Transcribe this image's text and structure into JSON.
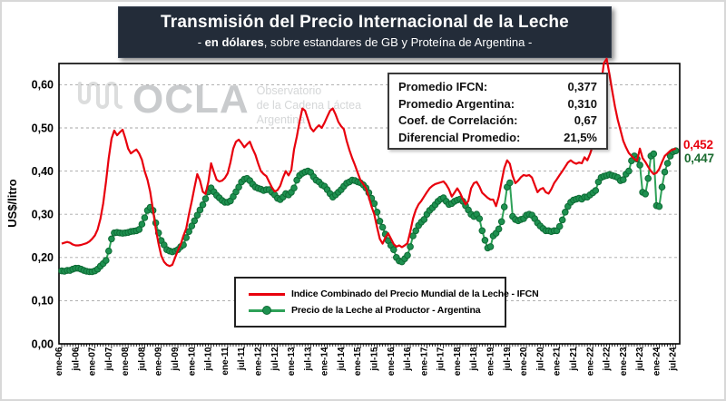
{
  "title": {
    "line1": "Transmisión del Precio Internacional de la Leche",
    "subtitle_prefix": "- ",
    "subtitle_bold": "en dólares",
    "subtitle_rest": ", sobre estandares de GB y Proteína de Argentina -"
  },
  "watermark": {
    "acronym": "OCLA",
    "line1": "Observatorio",
    "line2": "de la Cadena Láctea",
    "line3": "Argentina"
  },
  "stats_box": {
    "rows": [
      {
        "label": "Promedio IFCN:",
        "value": "0,377"
      },
      {
        "label": "Promedio Argentina:",
        "value": "0,310"
      },
      {
        "label": "Coef. de Correlación:",
        "value": "0,67"
      },
      {
        "label": "Diferencial Promedio:",
        "value": "21,5%"
      }
    ]
  },
  "legend": {
    "items": [
      {
        "label": "Indice Combinado del Precio Mundial de la Leche - IFCN",
        "color": "#e8000d",
        "marker": false
      },
      {
        "label": "Precio de la Leche al Productor - Argentina",
        "color": "#2ea158",
        "marker": true
      }
    ]
  },
  "end_labels": {
    "ifcn": "0,452",
    "argentina": "0,447"
  },
  "colors": {
    "title_bg": "#232c39",
    "ifcn_red": "#e8000d",
    "argentina_green": "#2ea158",
    "argentina_marker": "#1e9150",
    "argentina_marker_edge": "#0e6b35",
    "end_label_green": "#1a6b2f",
    "gridline": "#a6a6a6",
    "watermark_gray": "#c9cbcd"
  },
  "y_axis": {
    "label": "US$/litro",
    "ticks": [
      "0,00",
      "0,10",
      "0,20",
      "0,30",
      "0,40",
      "0,50",
      "0,60"
    ]
  },
  "chart_data": {
    "type": "line",
    "x_start": "ene-06",
    "x_end": "jul-24",
    "months_per_point": 1,
    "grid": "horizontal-dashed",
    "ylim": [
      0,
      0.6
    ],
    "x_tick_labels": [
      "ene-06",
      "jul-06",
      "ene-07",
      "jul-07",
      "ene-08",
      "jul-08",
      "ene-09",
      "jul-09",
      "ene-10",
      "jul-10",
      "ene-11",
      "jul-11",
      "ene-12",
      "jul-12",
      "ene-13",
      "jul-13",
      "ene-14",
      "jul-14",
      "ene-15",
      "jul-15",
      "ene-16",
      "jul-16",
      "ene-17",
      "jul-17",
      "ene-18",
      "jul-18",
      "ene-19",
      "jul-19",
      "ene-20",
      "jul-20",
      "ene-21",
      "jul-21",
      "ene-22",
      "jul-22",
      "ene-23",
      "jul-23",
      "ene-24",
      "jul-24"
    ],
    "series": [
      {
        "name": "Indice Combinado del Precio Mundial de la Leche - IFCN",
        "color": "#e8000d",
        "marker": false,
        "values": [
          0.232,
          0.234,
          0.236,
          0.234,
          0.23,
          0.228,
          0.228,
          0.229,
          0.231,
          0.233,
          0.237,
          0.243,
          0.251,
          0.265,
          0.29,
          0.325,
          0.375,
          0.43,
          0.475,
          0.494,
          0.483,
          0.49,
          0.496,
          0.476,
          0.452,
          0.441,
          0.446,
          0.45,
          0.441,
          0.426,
          0.4,
          0.38,
          0.352,
          0.31,
          0.267,
          0.232,
          0.204,
          0.19,
          0.183,
          0.18,
          0.183,
          0.2,
          0.216,
          0.23,
          0.25,
          0.267,
          0.3,
          0.33,
          0.362,
          0.393,
          0.378,
          0.352,
          0.347,
          0.375,
          0.418,
          0.398,
          0.38,
          0.376,
          0.378,
          0.384,
          0.395,
          0.42,
          0.452,
          0.468,
          0.473,
          0.465,
          0.455,
          0.462,
          0.468,
          0.452,
          0.438,
          0.418,
          0.4,
          0.393,
          0.388,
          0.375,
          0.362,
          0.353,
          0.356,
          0.366,
          0.385,
          0.4,
          0.39,
          0.402,
          0.45,
          0.48,
          0.515,
          0.545,
          0.54,
          0.52,
          0.5,
          0.492,
          0.5,
          0.506,
          0.5,
          0.512,
          0.526,
          0.54,
          0.545,
          0.531,
          0.514,
          0.504,
          0.497,
          0.47,
          0.449,
          0.43,
          0.414,
          0.396,
          0.379,
          0.37,
          0.36,
          0.34,
          0.318,
          0.3,
          0.27,
          0.243,
          0.232,
          0.246,
          0.256,
          0.244,
          0.231,
          0.225,
          0.228,
          0.224,
          0.228,
          0.233,
          0.26,
          0.29,
          0.31,
          0.323,
          0.331,
          0.341,
          0.351,
          0.36,
          0.366,
          0.37,
          0.372,
          0.374,
          0.376,
          0.369,
          0.358,
          0.341,
          0.35,
          0.36,
          0.35,
          0.335,
          0.323,
          0.331,
          0.36,
          0.372,
          0.375,
          0.364,
          0.35,
          0.344,
          0.338,
          0.334,
          0.334,
          0.319,
          0.341,
          0.376,
          0.407,
          0.425,
          0.417,
          0.389,
          0.372,
          0.378,
          0.386,
          0.391,
          0.389,
          0.391,
          0.385,
          0.368,
          0.351,
          0.358,
          0.361,
          0.351,
          0.348,
          0.358,
          0.372,
          0.381,
          0.391,
          0.4,
          0.41,
          0.42,
          0.425,
          0.42,
          0.417,
          0.42,
          0.418,
          0.432,
          0.425,
          0.44,
          0.46,
          0.487,
          0.53,
          0.6,
          0.65,
          0.66,
          0.625,
          0.586,
          0.55,
          0.519,
          0.495,
          0.47,
          0.455,
          0.442,
          0.435,
          0.428,
          0.424,
          0.452,
          0.43,
          0.421,
          0.41,
          0.4,
          0.393,
          0.396,
          0.405,
          0.421,
          0.435,
          0.441,
          0.447,
          0.45,
          0.452
        ]
      },
      {
        "name": "Precio de la Leche al Productor - Argentina",
        "color": "#2ea158",
        "marker": true,
        "marker_fill": "#1e9150",
        "marker_edge": "#0e6b35",
        "values": [
          0.169,
          0.168,
          0.17,
          0.17,
          0.173,
          0.175,
          0.175,
          0.173,
          0.17,
          0.168,
          0.167,
          0.167,
          0.169,
          0.173,
          0.18,
          0.186,
          0.193,
          0.215,
          0.243,
          0.257,
          0.258,
          0.257,
          0.256,
          0.257,
          0.258,
          0.26,
          0.261,
          0.262,
          0.265,
          0.277,
          0.292,
          0.309,
          0.316,
          0.309,
          0.28,
          0.257,
          0.239,
          0.229,
          0.218,
          0.215,
          0.213,
          0.215,
          0.218,
          0.225,
          0.229,
          0.246,
          0.26,
          0.273,
          0.285,
          0.298,
          0.31,
          0.322,
          0.336,
          0.352,
          0.361,
          0.352,
          0.344,
          0.338,
          0.332,
          0.328,
          0.328,
          0.331,
          0.341,
          0.352,
          0.363,
          0.375,
          0.381,
          0.383,
          0.378,
          0.37,
          0.363,
          0.36,
          0.358,
          0.355,
          0.357,
          0.357,
          0.351,
          0.345,
          0.337,
          0.334,
          0.34,
          0.348,
          0.345,
          0.351,
          0.361,
          0.379,
          0.39,
          0.395,
          0.398,
          0.4,
          0.397,
          0.387,
          0.379,
          0.375,
          0.368,
          0.365,
          0.357,
          0.348,
          0.34,
          0.345,
          0.351,
          0.357,
          0.365,
          0.372,
          0.375,
          0.379,
          0.378,
          0.375,
          0.373,
          0.368,
          0.361,
          0.35,
          0.337,
          0.325,
          0.305,
          0.284,
          0.27,
          0.254,
          0.239,
          0.228,
          0.218,
          0.2,
          0.192,
          0.19,
          0.197,
          0.205,
          0.225,
          0.25,
          0.262,
          0.274,
          0.282,
          0.288,
          0.3,
          0.309,
          0.315,
          0.322,
          0.33,
          0.335,
          0.338,
          0.33,
          0.323,
          0.325,
          0.33,
          0.333,
          0.335,
          0.33,
          0.32,
          0.31,
          0.3,
          0.295,
          0.3,
          0.29,
          0.262,
          0.24,
          0.222,
          0.225,
          0.25,
          0.256,
          0.266,
          0.283,
          0.317,
          0.363,
          0.373,
          0.295,
          0.288,
          0.285,
          0.288,
          0.29,
          0.298,
          0.3,
          0.298,
          0.29,
          0.28,
          0.273,
          0.267,
          0.262,
          0.262,
          0.26,
          0.262,
          0.262,
          0.272,
          0.287,
          0.305,
          0.318,
          0.328,
          0.333,
          0.335,
          0.337,
          0.335,
          0.34,
          0.34,
          0.345,
          0.35,
          0.355,
          0.375,
          0.385,
          0.388,
          0.39,
          0.392,
          0.39,
          0.388,
          0.385,
          0.378,
          0.38,
          0.393,
          0.4,
          0.424,
          0.435,
          0.428,
          0.414,
          0.351,
          0.347,
          0.383,
          0.435,
          0.44,
          0.32,
          0.318,
          0.363,
          0.398,
          0.418,
          0.435,
          0.445,
          0.447
        ]
      }
    ]
  }
}
